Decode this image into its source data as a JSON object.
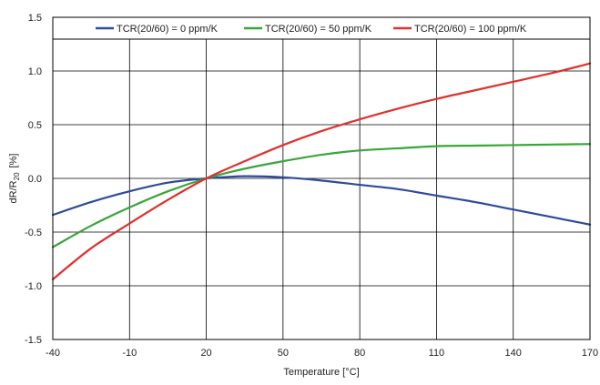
{
  "chart_data": {
    "type": "line",
    "xlabel": "Temperature [°C]",
    "ylabel": {
      "main": "dR/R",
      "sub": "20",
      "unit": "[%]"
    },
    "xlim": [
      -40,
      170
    ],
    "ylim": [
      -1.5,
      1.5
    ],
    "x_ticks": [
      -40,
      -10,
      20,
      50,
      80,
      110,
      140,
      170
    ],
    "x_tick_labels": [
      "-40",
      "-10",
      "20",
      "50",
      "80",
      "110",
      "140",
      "170"
    ],
    "y_ticks": [
      -1.5,
      -1.0,
      -0.5,
      0.0,
      0.5,
      1.0,
      1.5
    ],
    "y_tick_labels": [
      "-1.5",
      "-1.0",
      "-0.5",
      "0.0",
      "0.5",
      "1.0",
      "1.5"
    ],
    "grid": true,
    "legend_position": "top",
    "series": [
      {
        "name": "TCR(20/60) = 0 ppm/K",
        "color": "#2e4b9b",
        "x": [
          -40,
          -25,
          -10,
          5,
          20,
          35,
          50,
          65,
          80,
          95,
          110,
          125,
          140,
          155,
          170
        ],
        "y": [
          -0.34,
          -0.22,
          -0.12,
          -0.04,
          0.0,
          0.02,
          0.01,
          -0.02,
          -0.06,
          -0.1,
          -0.16,
          -0.22,
          -0.29,
          -0.36,
          -0.43
        ]
      },
      {
        "name": "TCR(20/60) = 50 ppm/K",
        "color": "#3aa53a",
        "x": [
          -40,
          -25,
          -10,
          5,
          20,
          35,
          50,
          65,
          80,
          95,
          110,
          125,
          140,
          155,
          170
        ],
        "y": [
          -0.64,
          -0.44,
          -0.27,
          -0.12,
          0.0,
          0.09,
          0.16,
          0.22,
          0.26,
          0.28,
          0.3,
          0.305,
          0.31,
          0.315,
          0.32
        ]
      },
      {
        "name": "TCR(20/60) = 100 ppm/K",
        "color": "#e0302c",
        "x": [
          -40,
          -25,
          -10,
          5,
          20,
          35,
          50,
          65,
          80,
          95,
          110,
          125,
          140,
          155,
          170
        ],
        "y": [
          -0.94,
          -0.65,
          -0.42,
          -0.2,
          0.0,
          0.16,
          0.31,
          0.44,
          0.55,
          0.65,
          0.74,
          0.82,
          0.9,
          0.98,
          1.07
        ]
      }
    ]
  }
}
